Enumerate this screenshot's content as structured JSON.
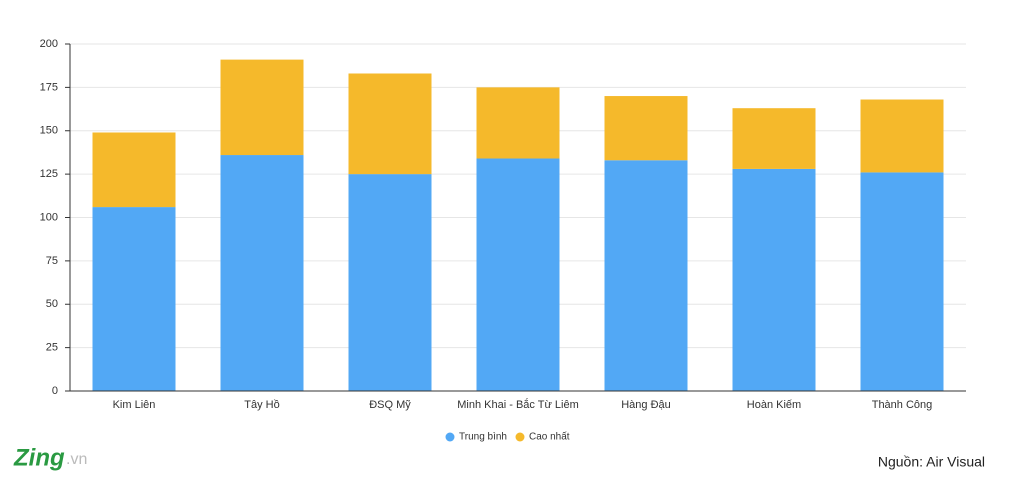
{
  "chart_data": {
    "type": "stacked-bar",
    "categories": [
      "Kim Liên",
      "Tây Hồ",
      "ĐSQ Mỹ",
      "Minh Khai - Bắc Từ Liêm",
      "Hàng Đậu",
      "Hoàn Kiếm",
      "Thành Công"
    ],
    "series": [
      {
        "name": "Trung bình",
        "color": "#52a8f5",
        "values": [
          106,
          136,
          125,
          134,
          133,
          128,
          126
        ]
      },
      {
        "name": "Cao nhất",
        "color": "#f5b92b",
        "values": [
          43,
          55,
          58,
          41,
          37,
          35,
          42
        ]
      }
    ],
    "ylim": [
      0,
      200
    ],
    "yticks": [
      0,
      25,
      50,
      75,
      100,
      125,
      150,
      175,
      200
    ],
    "grid": true,
    "legend": "bottom",
    "logo": [
      "Zing",
      ".vn"
    ],
    "annotations": [
      "Nguồn: Air Visual"
    ]
  }
}
